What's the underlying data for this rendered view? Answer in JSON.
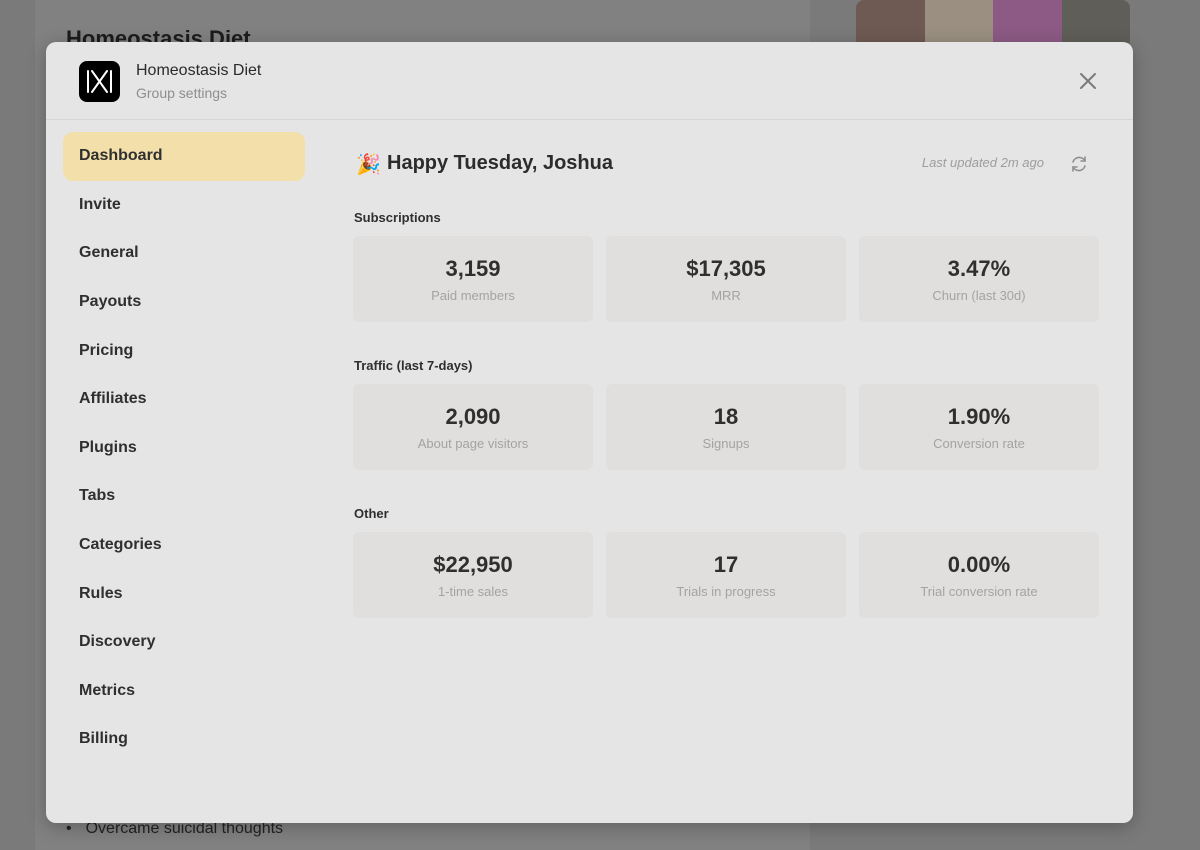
{
  "background": {
    "page_title": "Homeostasis Diet",
    "bullet_text": "Overcame suicidal thoughts"
  },
  "modal": {
    "title": "Homeostasis Diet",
    "subtitle": "Group settings"
  },
  "sidebar": {
    "items": [
      {
        "label": "Dashboard",
        "active": true
      },
      {
        "label": "Invite"
      },
      {
        "label": "General"
      },
      {
        "label": "Payouts"
      },
      {
        "label": "Pricing"
      },
      {
        "label": "Affiliates"
      },
      {
        "label": "Plugins"
      },
      {
        "label": "Tabs"
      },
      {
        "label": "Categories"
      },
      {
        "label": "Rules"
      },
      {
        "label": "Discovery"
      },
      {
        "label": "Metrics"
      },
      {
        "label": "Billing"
      }
    ]
  },
  "dashboard": {
    "greeting_icon": "party-popper-icon",
    "greeting": "Happy Tuesday, Joshua",
    "last_updated": "Last updated 2m ago",
    "sections": [
      {
        "label": "Subscriptions",
        "cards": [
          {
            "value": "3,159",
            "label": "Paid members"
          },
          {
            "value": "$17,305",
            "label": "MRR"
          },
          {
            "value": "3.47%",
            "label": "Churn (last 30d)"
          }
        ]
      },
      {
        "label": "Traffic (last 7-days)",
        "cards": [
          {
            "value": "2,090",
            "label": "About page visitors"
          },
          {
            "value": "18",
            "label": "Signups"
          },
          {
            "value": "1.90%",
            "label": "Conversion rate"
          }
        ]
      },
      {
        "label": "Other",
        "cards": [
          {
            "value": "$22,950",
            "label": "1-time sales"
          },
          {
            "value": "17",
            "label": "Trials in progress"
          },
          {
            "value": "0.00%",
            "label": "Trial conversion rate"
          }
        ]
      }
    ]
  },
  "colors": {
    "active_nav": "#f3dfaa",
    "modal_bg": "#e5e5e5",
    "overlay": "#7a7a7a"
  }
}
